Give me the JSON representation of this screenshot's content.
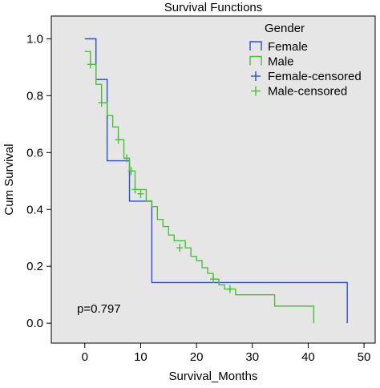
{
  "chart_data": {
    "type": "line",
    "step": true,
    "title": "Survival Functions",
    "xlabel": "Survival_Months",
    "ylabel": "Cum Survival",
    "xlim": [
      -6,
      52
    ],
    "ylim": [
      -0.07,
      1.08
    ],
    "xticks": [
      0,
      10,
      20,
      30,
      40,
      50
    ],
    "yticks": [
      0.0,
      0.2,
      0.4,
      0.6,
      0.8,
      1.0
    ],
    "ytick_labels": [
      "0.0",
      "0.2",
      "0.4",
      "0.6",
      "0.8",
      "1.0"
    ],
    "grid": false,
    "plot_background": "#e6e6e6",
    "legend": {
      "title": "Gender",
      "placement": "top-right",
      "entries": [
        {
          "label": "Female",
          "color": "#2a4fd6",
          "marker": "step"
        },
        {
          "label": "Male",
          "color": "#4cbf3a",
          "marker": "step"
        },
        {
          "label": "Female-censored",
          "color": "#2a4fd6",
          "marker": "plus"
        },
        {
          "label": "Male-censored",
          "color": "#4cbf3a",
          "marker": "plus"
        }
      ]
    },
    "annotation": "p=0.797",
    "series": [
      {
        "name": "Female",
        "color": "#2a4fd6",
        "x": [
          0,
          2,
          4,
          8,
          12,
          47
        ],
        "y": [
          1.0,
          0.857,
          0.571,
          0.429,
          0.143,
          0.0
        ],
        "censored": []
      },
      {
        "name": "Male",
        "color": "#4cbf3a",
        "x": [
          0,
          1,
          2,
          3,
          4,
          5,
          6,
          7,
          8,
          9,
          11,
          12,
          13,
          14,
          15,
          16,
          18,
          19,
          20,
          21,
          22,
          23,
          24,
          25,
          27,
          34,
          41
        ],
        "y": [
          0.955,
          0.91,
          0.84,
          0.775,
          0.73,
          0.69,
          0.645,
          0.58,
          0.535,
          0.47,
          0.43,
          0.41,
          0.365,
          0.34,
          0.31,
          0.29,
          0.265,
          0.235,
          0.22,
          0.195,
          0.175,
          0.155,
          0.135,
          0.12,
          0.1,
          0.06,
          0.04
        ],
        "end_drop_to": 0.0,
        "censored": [
          {
            "x": 1,
            "y": 0.91
          },
          {
            "x": 3,
            "y": 0.775
          },
          {
            "x": 6,
            "y": 0.645
          },
          {
            "x": 7.5,
            "y": 0.58
          },
          {
            "x": 8.3,
            "y": 0.535
          },
          {
            "x": 9,
            "y": 0.47
          },
          {
            "x": 10,
            "y": 0.455
          },
          {
            "x": 17,
            "y": 0.265
          },
          {
            "x": 23,
            "y": 0.155
          },
          {
            "x": 26,
            "y": 0.12
          }
        ]
      }
    ]
  }
}
